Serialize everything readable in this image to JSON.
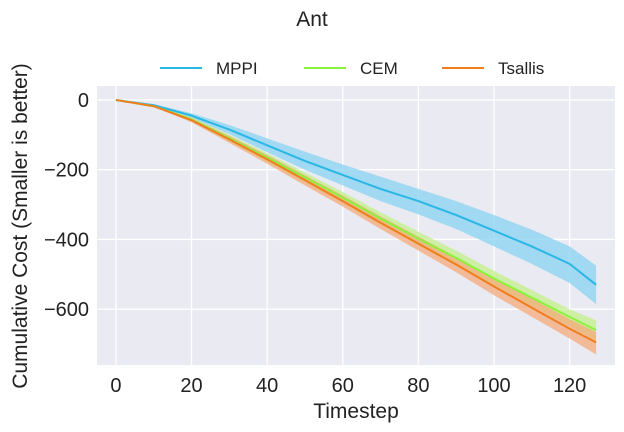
{
  "chart_data": {
    "type": "line",
    "title": "Ant",
    "xlabel": "Timestep",
    "ylabel": "Cumulative Cost (Smaller is better)",
    "xlim": [
      -5,
      132
    ],
    "ylim": [
      -760,
      40
    ],
    "xticks": [
      0,
      20,
      40,
      60,
      80,
      100,
      120
    ],
    "yticks": [
      0,
      -200,
      -400,
      -600
    ],
    "ytick_labels": [
      "0",
      "−200",
      "−400",
      "−600"
    ],
    "grid": true,
    "legend_position": "top",
    "x": [
      0,
      10,
      20,
      30,
      40,
      50,
      60,
      70,
      80,
      90,
      100,
      110,
      120,
      127
    ],
    "series": [
      {
        "name": "MPPI",
        "color": "#2ab7e6",
        "fill": "#87d3f0",
        "values": [
          0,
          -15,
          -45,
          -85,
          -130,
          -175,
          -215,
          -255,
          -290,
          -330,
          -375,
          -420,
          -470,
          -530
        ],
        "upper": [
          0,
          -12,
          -38,
          -72,
          -110,
          -148,
          -185,
          -220,
          -255,
          -290,
          -330,
          -372,
          -420,
          -475
        ],
        "lower": [
          0,
          -18,
          -52,
          -98,
          -150,
          -200,
          -245,
          -290,
          -328,
          -370,
          -420,
          -470,
          -525,
          -585
        ]
      },
      {
        "name": "CEM",
        "color": "#8bf23a",
        "fill": "#c3f08a",
        "values": [
          0,
          -18,
          -56,
          -110,
          -165,
          -222,
          -280,
          -340,
          -398,
          -453,
          -512,
          -567,
          -622,
          -660
        ],
        "upper": [
          0,
          -16,
          -50,
          -100,
          -153,
          -208,
          -264,
          -322,
          -378,
          -432,
          -490,
          -545,
          -600,
          -632
        ],
        "lower": [
          0,
          -20,
          -62,
          -120,
          -178,
          -237,
          -297,
          -358,
          -418,
          -475,
          -535,
          -592,
          -648,
          -690
        ]
      },
      {
        "name": "Tsallis",
        "color": "#f07d1e",
        "fill": "#f4a97a",
        "values": [
          0,
          -18,
          -58,
          -113,
          -170,
          -230,
          -290,
          -352,
          -412,
          -472,
          -535,
          -596,
          -656,
          -695
        ],
        "upper": [
          0,
          -16,
          -52,
          -103,
          -158,
          -216,
          -274,
          -334,
          -392,
          -450,
          -510,
          -570,
          -628,
          -665
        ],
        "lower": [
          0,
          -20,
          -64,
          -123,
          -183,
          -245,
          -306,
          -370,
          -432,
          -494,
          -560,
          -622,
          -684,
          -730
        ]
      }
    ]
  }
}
